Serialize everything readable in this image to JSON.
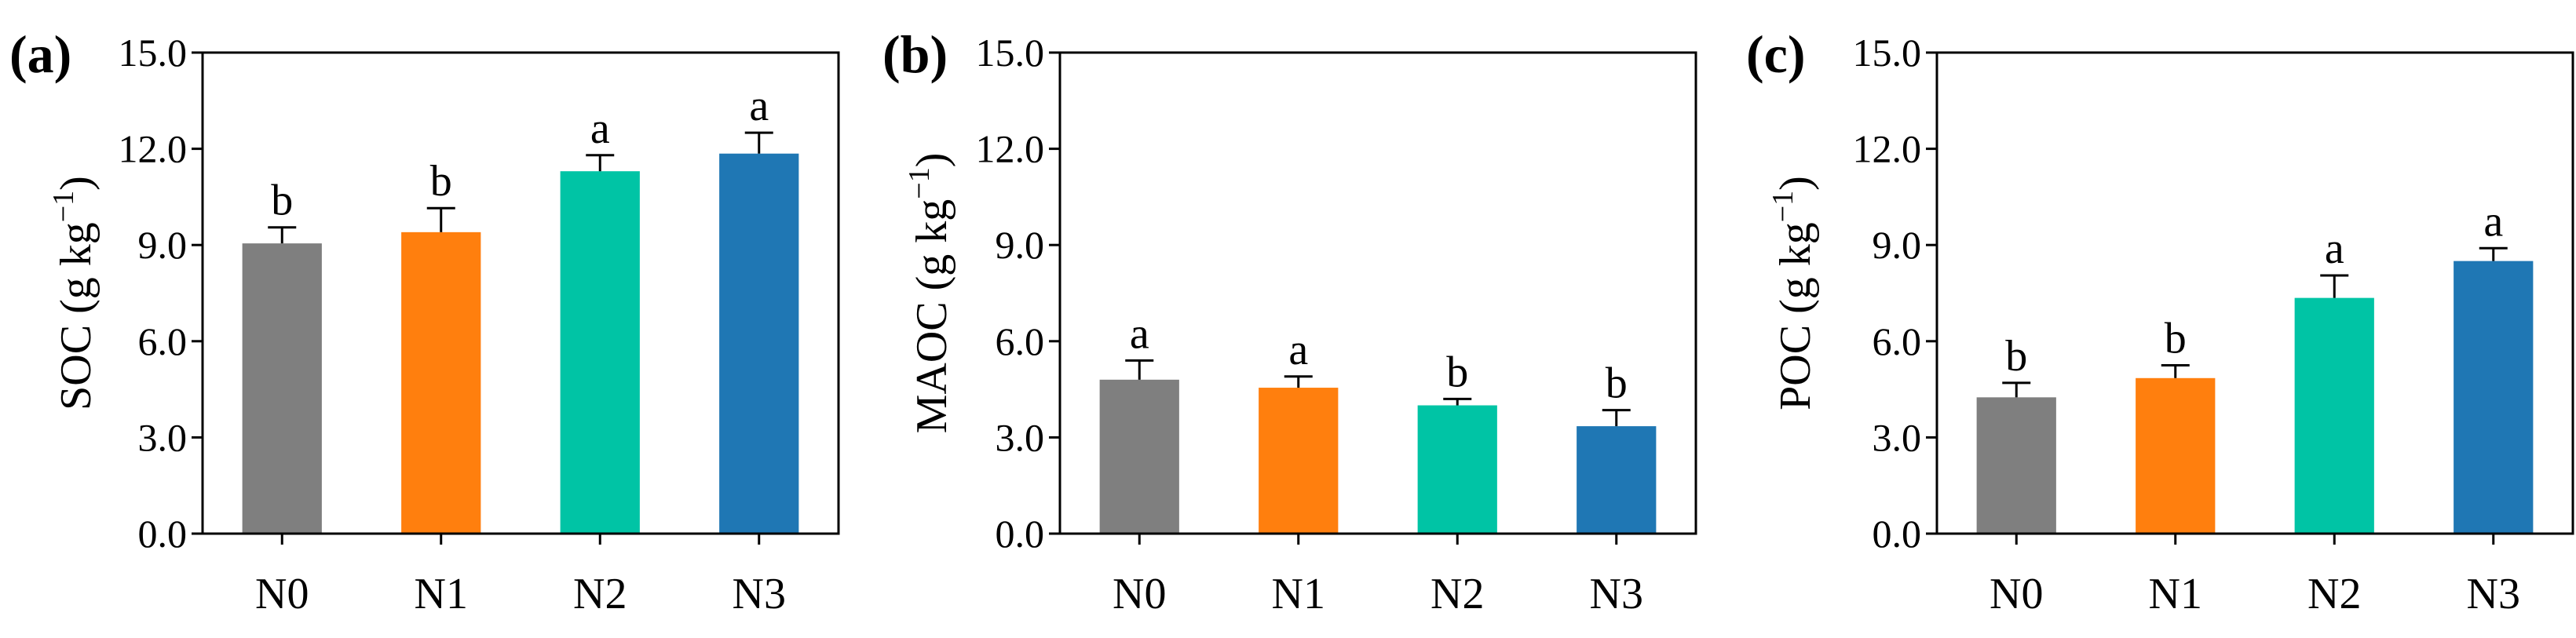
{
  "chart_data": [
    {
      "type": "bar",
      "panel": "(a)",
      "categories": [
        "N0",
        "N1",
        "N2",
        "N3"
      ],
      "values": [
        9.05,
        9.4,
        11.3,
        11.85
      ],
      "errors": [
        0.5,
        0.75,
        0.5,
        0.65
      ],
      "significance": [
        "b",
        "b",
        "a",
        "a"
      ],
      "ylabel": "SOC (g kg",
      "ylabel_sup": "−1",
      "ylabel_end": ")",
      "ylim": [
        0,
        15
      ],
      "yticks": [
        "0.0",
        "3.0",
        "6.0",
        "9.0",
        "12.0",
        "15.0"
      ],
      "grid": false
    },
    {
      "type": "bar",
      "panel": "(b)",
      "categories": [
        "N0",
        "N1",
        "N2",
        "N3"
      ],
      "values": [
        4.8,
        4.55,
        4.0,
        3.35
      ],
      "errors": [
        0.6,
        0.35,
        0.2,
        0.5
      ],
      "significance": [
        "a",
        "a",
        "b",
        "b"
      ],
      "ylabel": "MAOC (g kg",
      "ylabel_sup": "−1",
      "ylabel_end": ")",
      "ylim": [
        0,
        15
      ],
      "yticks": [
        "0.0",
        "3.0",
        "6.0",
        "9.0",
        "12.0",
        "15.0"
      ],
      "grid": false
    },
    {
      "type": "bar",
      "panel": "(c)",
      "categories": [
        "N0",
        "N1",
        "N2",
        "N3"
      ],
      "values": [
        4.25,
        4.85,
        7.35,
        8.5
      ],
      "errors": [
        0.45,
        0.4,
        0.7,
        0.4
      ],
      "significance": [
        "b",
        "b",
        "a",
        "a"
      ],
      "ylabel": "POC (g kg",
      "ylabel_sup": "−1",
      "ylabel_end": ")",
      "ylim": [
        0,
        15
      ],
      "yticks": [
        "0.0",
        "3.0",
        "6.0",
        "9.0",
        "12.0",
        "15.0"
      ],
      "grid": false
    }
  ],
  "colors": {
    "N0": "#7f7f7f",
    "N1": "#ff7f0e",
    "N2": "#00c4a5",
    "N3": "#1f77b4"
  }
}
